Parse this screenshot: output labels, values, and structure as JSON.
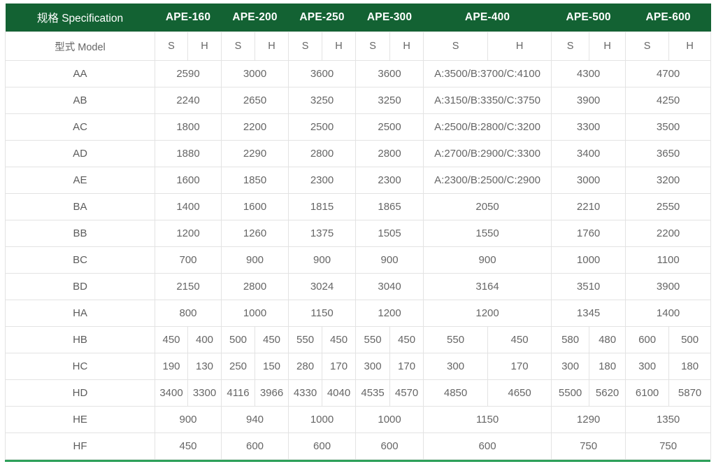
{
  "header": {
    "spec_label": "规格 Specification",
    "model_label": "型式 Model",
    "models": [
      "APE-160",
      "APE-200",
      "APE-250",
      "APE-300",
      "APE-400",
      "APE-500",
      "APE-600"
    ],
    "sub_columns": [
      "S",
      "H"
    ]
  },
  "colors": {
    "header_bg": "#136233",
    "header_text": "#ffffff",
    "accent_bottom_line": "#2da05a",
    "grid_line": "#e3e3e3",
    "value_text": "#666666"
  },
  "rows": [
    {
      "label": "AA",
      "merged": true,
      "values": [
        "2590",
        "3000",
        "3600",
        "3600",
        "A:3500/B:3700/C:4100",
        "4300",
        "4700"
      ]
    },
    {
      "label": "AB",
      "merged": true,
      "values": [
        "2240",
        "2650",
        "3250",
        "3250",
        "A:3150/B:3350/C:3750",
        "3900",
        "4250"
      ]
    },
    {
      "label": "AC",
      "merged": true,
      "values": [
        "1800",
        "2200",
        "2500",
        "2500",
        "A:2500/B:2800/C:3200",
        "3300",
        "3500"
      ]
    },
    {
      "label": "AD",
      "merged": true,
      "values": [
        "1880",
        "2290",
        "2800",
        "2800",
        "A:2700/B:2900/C:3300",
        "3400",
        "3650"
      ]
    },
    {
      "label": "AE",
      "merged": true,
      "values": [
        "1600",
        "1850",
        "2300",
        "2300",
        "A:2300/B:2500/C:2900",
        "3000",
        "3200"
      ]
    },
    {
      "label": "BA",
      "merged": true,
      "values": [
        "1400",
        "1600",
        "1815",
        "1865",
        "2050",
        "2210",
        "2550"
      ]
    },
    {
      "label": "BB",
      "merged": true,
      "values": [
        "1200",
        "1260",
        "1375",
        "1505",
        "1550",
        "1760",
        "2200"
      ]
    },
    {
      "label": "BC",
      "merged": true,
      "values": [
        "700",
        "900",
        "900",
        "900",
        "900",
        "1000",
        "1100"
      ]
    },
    {
      "label": "BD",
      "merged": true,
      "values": [
        "2150",
        "2800",
        "3024",
        "3040",
        "3164",
        "3510",
        "3900"
      ]
    },
    {
      "label": "HA",
      "merged": true,
      "values": [
        "800",
        "1000",
        "1150",
        "1200",
        "1200",
        "1345",
        "1400"
      ]
    },
    {
      "label": "HB",
      "merged": false,
      "values": [
        "450",
        "400",
        "500",
        "450",
        "550",
        "450",
        "550",
        "450",
        "550",
        "450",
        "580",
        "480",
        "600",
        "500"
      ]
    },
    {
      "label": "HC",
      "merged": false,
      "values": [
        "190",
        "130",
        "250",
        "150",
        "280",
        "170",
        "300",
        "170",
        "300",
        "170",
        "300",
        "180",
        "300",
        "180"
      ]
    },
    {
      "label": "HD",
      "merged": false,
      "values": [
        "3400",
        "3300",
        "4116",
        "3966",
        "4330",
        "4040",
        "4535",
        "4570",
        "4850",
        "4650",
        "5500",
        "5620",
        "6100",
        "5870"
      ]
    },
    {
      "label": "HE",
      "merged": true,
      "values": [
        "900",
        "940",
        "1000",
        "1000",
        "1150",
        "1290",
        "1350"
      ]
    },
    {
      "label": "HF",
      "merged": true,
      "values": [
        "450",
        "600",
        "600",
        "600",
        "600",
        "750",
        "750"
      ]
    }
  ]
}
